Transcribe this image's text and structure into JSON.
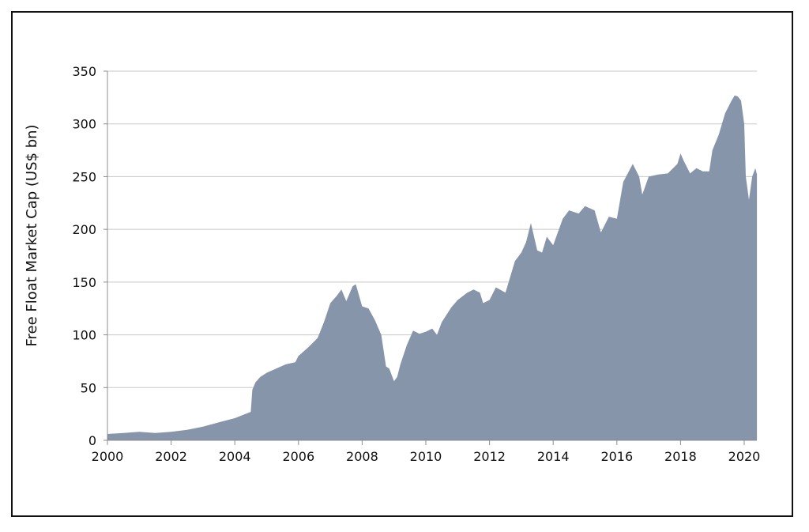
{
  "chart_data": {
    "type": "area",
    "title": "",
    "xlabel": "",
    "ylabel": "Free Float Market Cap (US$ bn)",
    "xlim": [
      2000,
      2020.4
    ],
    "ylim": [
      0,
      350
    ],
    "x_ticks": [
      "2000",
      "2002",
      "2004",
      "2006",
      "2008",
      "2010",
      "2012",
      "2014",
      "2016",
      "2018",
      "2020"
    ],
    "y_ticks": [
      "0",
      "50",
      "100",
      "150",
      "200",
      "250",
      "300",
      "350"
    ],
    "grid": "horizontal",
    "color": "#8795aa",
    "series": [
      {
        "x": [
          2000.0,
          2000.5,
          2001.0,
          2001.5,
          2002.0,
          2002.5,
          2003.0,
          2003.5,
          2004.0,
          2004.5,
          2004.55,
          2004.65,
          2004.8,
          2005.0,
          2005.3,
          2005.6,
          2005.9,
          2006.0,
          2006.3,
          2006.6,
          2006.8,
          2007.0,
          2007.2,
          2007.35,
          2007.5,
          2007.7,
          2007.8,
          2008.0,
          2008.2,
          2008.4,
          2008.6,
          2008.75,
          2008.85,
          2009.0,
          2009.1,
          2009.2,
          2009.4,
          2009.6,
          2009.8,
          2010.0,
          2010.2,
          2010.35,
          2010.5,
          2010.8,
          2011.0,
          2011.3,
          2011.5,
          2011.7,
          2011.8,
          2012.0,
          2012.2,
          2012.5,
          2012.8,
          2013.0,
          2013.15,
          2013.3,
          2013.5,
          2013.65,
          2013.8,
          2014.0,
          2014.3,
          2014.5,
          2014.8,
          2015.0,
          2015.3,
          2015.5,
          2015.75,
          2016.0,
          2016.2,
          2016.5,
          2016.7,
          2016.8,
          2017.0,
          2017.3,
          2017.6,
          2017.9,
          2018.0,
          2018.1,
          2018.3,
          2018.5,
          2018.7,
          2018.9,
          2019.0,
          2019.2,
          2019.4,
          2019.6,
          2019.7,
          2019.8,
          2019.9,
          2020.0,
          2020.05,
          2020.15,
          2020.25,
          2020.35,
          2020.4
        ],
        "values": [
          6,
          7,
          8,
          7,
          8,
          10,
          13,
          17,
          21,
          27,
          48,
          55,
          60,
          64,
          68,
          72,
          74,
          80,
          88,
          97,
          112,
          130,
          137,
          143,
          132,
          146,
          148,
          127,
          125,
          114,
          100,
          70,
          68,
          56,
          60,
          72,
          90,
          104,
          101,
          103,
          106,
          100,
          112,
          126,
          133,
          140,
          143,
          140,
          130,
          133,
          145,
          140,
          170,
          178,
          188,
          206,
          180,
          178,
          193,
          185,
          210,
          218,
          215,
          222,
          218,
          197,
          212,
          210,
          245,
          262,
          250,
          233,
          250,
          252,
          253,
          262,
          272,
          265,
          253,
          258,
          255,
          255,
          275,
          290,
          310,
          322,
          327,
          326,
          322,
          300,
          250,
          228,
          250,
          258,
          252
        ]
      }
    ]
  }
}
